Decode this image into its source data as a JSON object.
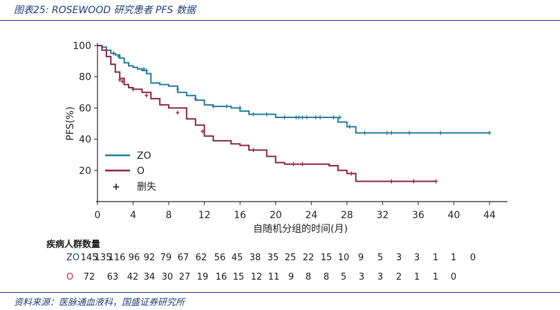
{
  "header": {
    "title": "图表25:  ROSEWOOD 研究患者 PFS 数据"
  },
  "footer": {
    "source": "资料来源：医脉通血液科，国盛证券研究所"
  },
  "colors": {
    "zo": "#1f7a9a",
    "o": "#8b2240",
    "accent": "#1f3d7a"
  },
  "chart_data": {
    "type": "line",
    "title": "",
    "xlabel": "自随机分组的时间(月)",
    "ylabel": "PFS(%)",
    "xlim": [
      0,
      44
    ],
    "ylim": [
      0,
      100
    ],
    "xticks": [
      0,
      4,
      8,
      12,
      16,
      20,
      24,
      28,
      32,
      36,
      40,
      44
    ],
    "yticks": [
      20,
      40,
      60,
      80,
      100
    ],
    "legend": {
      "position": "bottom-left",
      "censor_label": "删失",
      "censor_symbol": "+"
    },
    "series": [
      {
        "name": "ZO",
        "color": "#1f7a9a",
        "x": [
          0,
          0.5,
          1,
          1.5,
          2,
          2.5,
          3,
          3.5,
          4,
          4.5,
          5,
          5.5,
          6,
          7,
          8,
          9,
          10,
          11,
          12,
          13,
          14,
          15,
          16,
          17,
          18,
          19,
          20,
          22,
          24,
          26,
          27,
          28,
          29,
          30,
          36,
          44
        ],
        "y": [
          100,
          99,
          97,
          95,
          94,
          92,
          89,
          87,
          86,
          85,
          84,
          82,
          76,
          75,
          74,
          70,
          68,
          65,
          62,
          61,
          61,
          60,
          58,
          56,
          56,
          56,
          54,
          54,
          54,
          54,
          51,
          48,
          44,
          44,
          44,
          44
        ],
        "censor_x": [
          1,
          1.8,
          2.4,
          5.2,
          5.5,
          9,
          11,
          13,
          14.5,
          16,
          17.5,
          19,
          21,
          22.3,
          22.6,
          23,
          23.5,
          24.5,
          25,
          26.5,
          27.2,
          28.3,
          30,
          32.5,
          33,
          35,
          38.5,
          44
        ],
        "censor_y": [
          97,
          95,
          93,
          85,
          84,
          72,
          66,
          61,
          61,
          60,
          56,
          56,
          54,
          54,
          54,
          54,
          54,
          54,
          54,
          54,
          54,
          48,
          44,
          44,
          44,
          44,
          44,
          44
        ]
      },
      {
        "name": "O",
        "color": "#8b2240",
        "x": [
          0,
          0.5,
          1,
          1.5,
          2,
          2.5,
          3,
          3.5,
          4,
          5,
          6,
          7,
          8,
          10,
          11,
          12,
          13,
          15,
          16,
          17,
          19,
          20,
          21,
          24,
          26,
          27,
          28,
          29,
          30,
          33,
          38
        ],
        "y": [
          100,
          97,
          93,
          88,
          83,
          79,
          75,
          73,
          72,
          70,
          66,
          62,
          60,
          53,
          49,
          42,
          39,
          37,
          36,
          33,
          29,
          25,
          24,
          24,
          23,
          20,
          18,
          13,
          13,
          13,
          13
        ],
        "censor_x": [
          2.5,
          2.8,
          4,
          5.5,
          9,
          11.8,
          17.5,
          22,
          23,
          28.5,
          33,
          35.5,
          38
        ],
        "censor_y": [
          78,
          77,
          72,
          68,
          57,
          45,
          33,
          24,
          24,
          18,
          13,
          13,
          13
        ]
      }
    ],
    "risk_table": {
      "title": "疾病人群数量",
      "rows": [
        {
          "name": "ZO",
          "values": [
            "145",
            "135",
            "116",
            "96",
            "92",
            "79",
            "67",
            "62",
            "56",
            "45",
            "38",
            "35",
            "25",
            "22",
            "15",
            "10",
            "9",
            "5",
            "3",
            "3",
            "1",
            "1",
            "0"
          ]
        },
        {
          "name": "O",
          "values": [
            "72",
            "63",
            "42",
            "34",
            "30",
            "27",
            "19",
            "16",
            "15",
            "12",
            "11",
            "9",
            "8",
            "8",
            "5",
            "3",
            "3",
            "2",
            "1",
            "1",
            "0"
          ]
        }
      ]
    }
  }
}
